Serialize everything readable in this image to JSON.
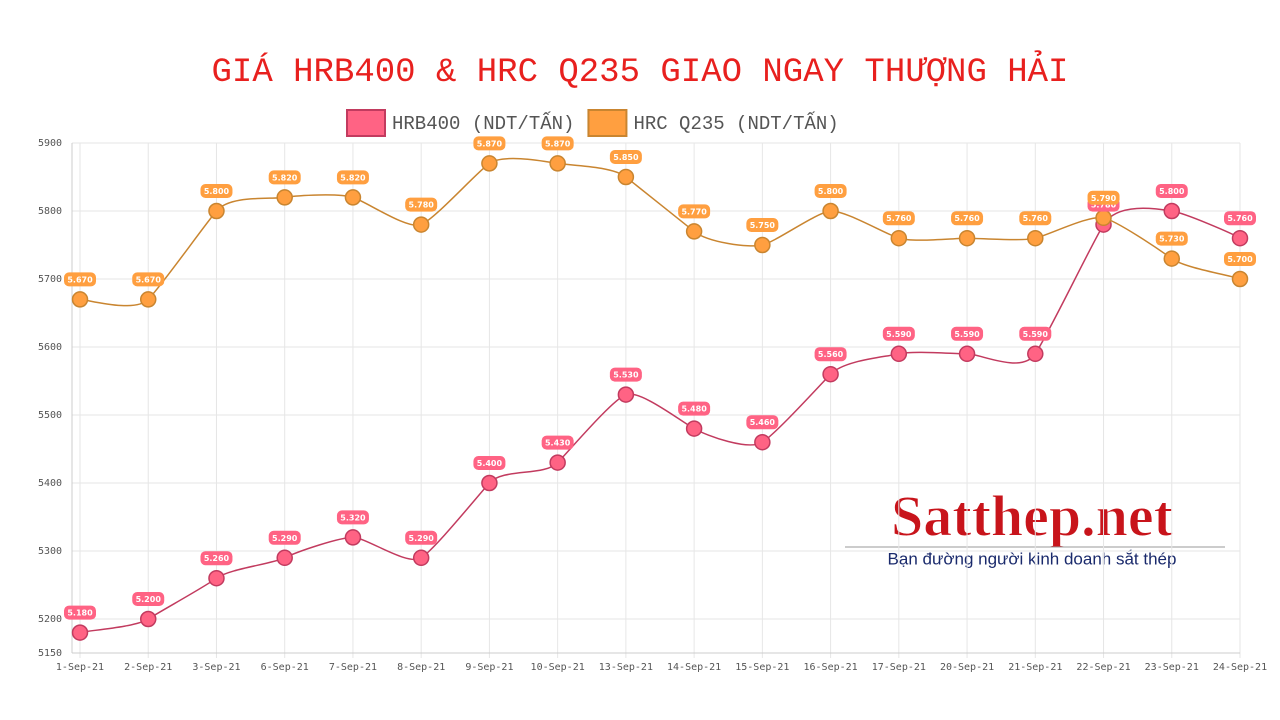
{
  "chart_data": {
    "type": "line",
    "title": "GIÁ HRB400 & HRC Q235 GIAO NGAY THƯỢNG HẢI",
    "categories": [
      "1-Sep-21",
      "2-Sep-21",
      "3-Sep-21",
      "6-Sep-21",
      "7-Sep-21",
      "8-Sep-21",
      "9-Sep-21",
      "10-Sep-21",
      "13-Sep-21",
      "14-Sep-21",
      "15-Sep-21",
      "16-Sep-21",
      "17-Sep-21",
      "20-Sep-21",
      "21-Sep-21",
      "22-Sep-21",
      "23-Sep-21",
      "24-Sep-21"
    ],
    "series": [
      {
        "name": "HRB400 (NDT/TẤN)",
        "color": "#ff6384",
        "line_color": "#c23b5f",
        "values": [
          5180,
          5200,
          5260,
          5290,
          5320,
          5290,
          5400,
          5430,
          5530,
          5480,
          5460,
          5560,
          5590,
          5590,
          5590,
          5780,
          5800,
          5760
        ],
        "value_labels": [
          "5.180",
          "5.200",
          "5.260",
          "5.290",
          "5.320",
          "5.290",
          "5.400",
          "5.430",
          "5.530",
          "5.480",
          "5.460",
          "5.560",
          "5.590",
          "5.590",
          "5.590",
          "5.780",
          "5.800",
          "5.760"
        ]
      },
      {
        "name": "HRC Q235 (NDT/TẤN)",
        "color": "#ff9f40",
        "line_color": "#c98530",
        "values": [
          5670,
          5670,
          5800,
          5820,
          5820,
          5780,
          5870,
          5870,
          5850,
          5770,
          5750,
          5800,
          5760,
          5760,
          5760,
          5790,
          5730,
          5700
        ],
        "value_labels": [
          "5.670",
          "5.670",
          "5.800",
          "5.820",
          "5.820",
          "5.780",
          "5.870",
          "5.870",
          "5.850",
          "5.770",
          "5.750",
          "5.800",
          "5.760",
          "5.760",
          "5.760",
          "5.790",
          "5.730",
          "5.700"
        ]
      }
    ],
    "ylim": [
      5150,
      5900
    ],
    "yticks": [
      5150,
      5200,
      5300,
      5400,
      5500,
      5600,
      5700,
      5800,
      5900
    ],
    "grid": true,
    "legend": "top",
    "watermark": {
      "brand": "Satthep.net",
      "slogan": "Bạn đường người kinh doanh sắt thép"
    }
  }
}
